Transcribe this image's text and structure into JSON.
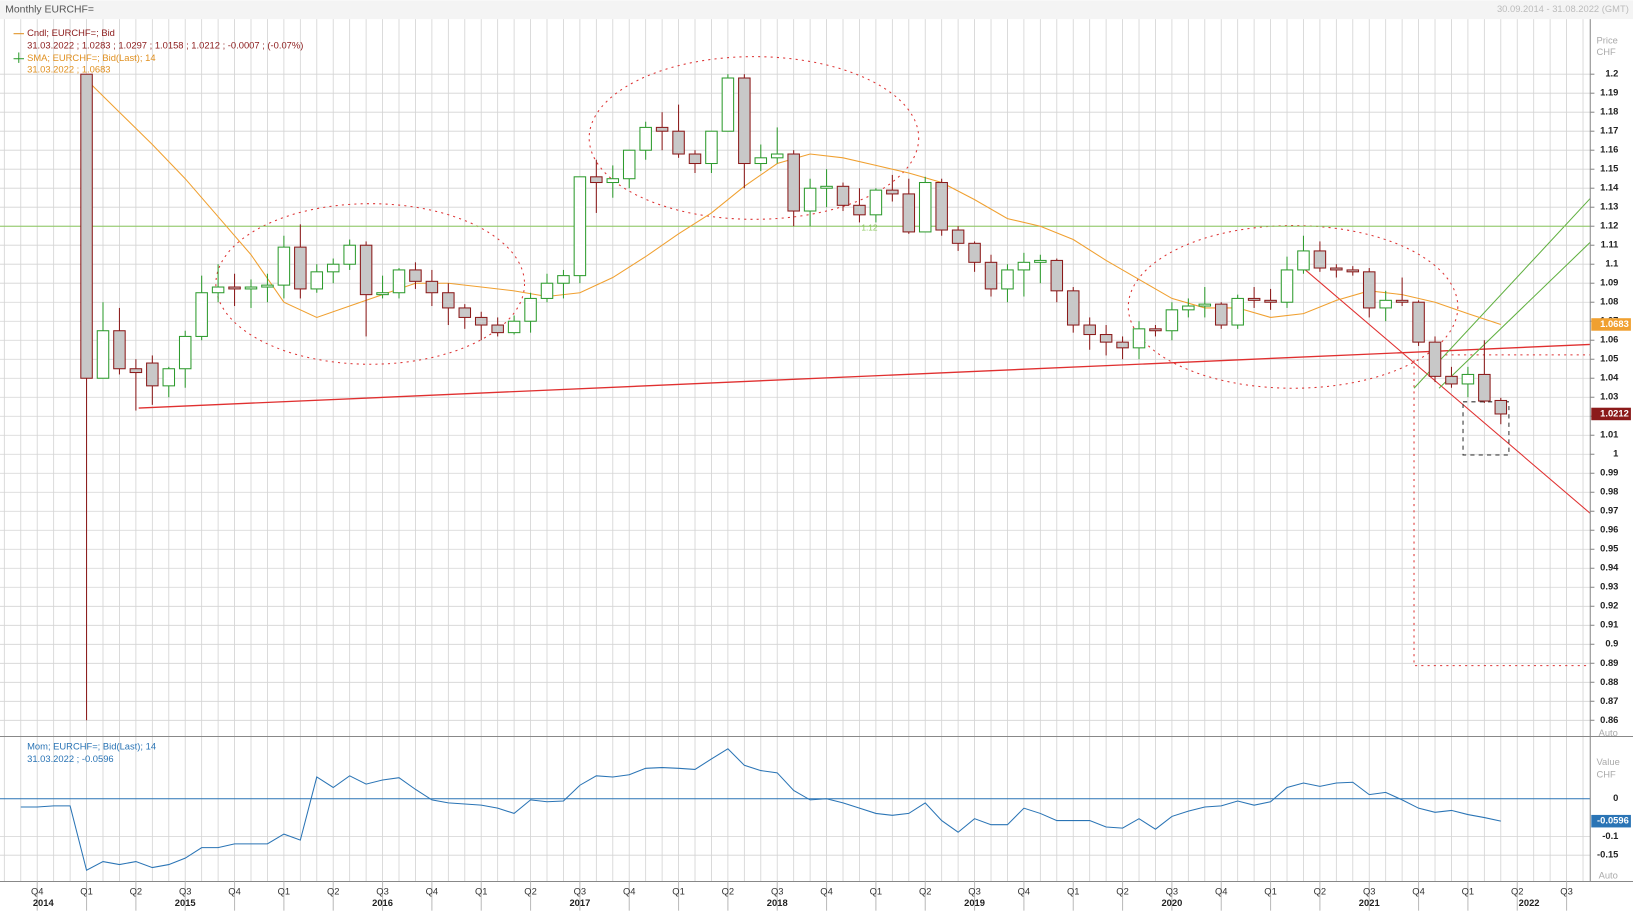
{
  "chart_data": {
    "type": "candlestick",
    "title": "Monthly EURCHF=",
    "date_range": "30.09.2014 - 31.08.2022 (GMT)",
    "legend": [
      "Cndl; EURCHF=; Bid",
      "31.03.2022 ; 1.0283 ; 1.0297 ; 1.0158 ; 1.0212 ; -0.0007 ; (-0.07%)",
      "SMA; EURCHF=; Bid(Last); 14",
      "31.03.2022 ; 1.0683"
    ],
    "y_axis_label": [
      "Price",
      "CHF"
    ],
    "y_auto": "Auto",
    "ylim": [
      0.852,
      1.229
    ],
    "yticks": [
      0.86,
      0.87,
      0.88,
      0.89,
      0.9,
      0.91,
      0.92,
      0.93,
      0.94,
      0.95,
      0.96,
      0.97,
      0.98,
      0.99,
      1,
      1.01,
      1.02,
      1.03,
      1.04,
      1.05,
      1.06,
      1.07,
      1.08,
      1.09,
      1.1,
      1.11,
      1.12,
      1.13,
      1.14,
      1.15,
      1.16,
      1.17,
      1.18,
      1.19,
      1.2
    ],
    "quarters": [
      "Q4",
      "Q1",
      "Q2",
      "Q3",
      "Q4",
      "Q1",
      "Q2",
      "Q3",
      "Q4",
      "Q1",
      "Q2",
      "Q3",
      "Q4",
      "Q1",
      "Q2",
      "Q3",
      "Q4",
      "Q1",
      "Q2",
      "Q3",
      "Q4",
      "Q1",
      "Q2",
      "Q3",
      "Q4",
      "Q1",
      "Q2",
      "Q3",
      "Q4",
      "Q1",
      "Q2",
      "Q3"
    ],
    "years": [
      "2014",
      "2015",
      "2016",
      "2017",
      "2018",
      "2019",
      "2020",
      "2021",
      "2022"
    ],
    "up_color": "#2e9b2e",
    "down_color": "#8b1a1a",
    "down_fill": "#c8c8c8",
    "candles": [
      [
        1.2,
        1.2,
        0.86,
        1.04
      ],
      [
        1.04,
        1.08,
        1.04,
        1.065
      ],
      [
        1.065,
        1.077,
        1.042,
        1.045
      ],
      [
        1.045,
        1.05,
        1.023,
        1.043
      ],
      [
        1.048,
        1.052,
        1.026,
        1.036
      ],
      [
        1.036,
        1.046,
        1.03,
        1.045
      ],
      [
        1.045,
        1.065,
        1.035,
        1.062
      ],
      [
        1.062,
        1.094,
        1.06,
        1.085
      ],
      [
        1.085,
        1.1,
        1.08,
        1.088
      ],
      [
        1.088,
        1.095,
        1.078,
        1.087
      ],
      [
        1.087,
        1.092,
        1.077,
        1.088
      ],
      [
        1.088,
        1.095,
        1.08,
        1.089
      ],
      [
        1.089,
        1.115,
        1.082,
        1.109
      ],
      [
        1.109,
        1.121,
        1.082,
        1.087
      ],
      [
        1.087,
        1.1,
        1.085,
        1.096
      ],
      [
        1.096,
        1.103,
        1.09,
        1.1
      ],
      [
        1.1,
        1.113,
        1.097,
        1.11
      ],
      [
        1.11,
        1.112,
        1.062,
        1.084
      ],
      [
        1.084,
        1.094,
        1.082,
        1.085
      ],
      [
        1.085,
        1.098,
        1.082,
        1.097
      ],
      [
        1.097,
        1.101,
        1.087,
        1.091
      ],
      [
        1.091,
        1.097,
        1.078,
        1.085
      ],
      [
        1.085,
        1.09,
        1.068,
        1.077
      ],
      [
        1.077,
        1.079,
        1.066,
        1.072
      ],
      [
        1.072,
        1.075,
        1.06,
        1.068
      ],
      [
        1.068,
        1.072,
        1.062,
        1.064
      ],
      [
        1.064,
        1.073,
        1.063,
        1.07
      ],
      [
        1.07,
        1.085,
        1.064,
        1.082
      ],
      [
        1.082,
        1.095,
        1.08,
        1.09
      ],
      [
        1.09,
        1.097,
        1.082,
        1.094
      ],
      [
        1.094,
        1.146,
        1.09,
        1.146
      ],
      [
        1.146,
        1.155,
        1.127,
        1.143
      ],
      [
        1.143,
        1.152,
        1.135,
        1.145
      ],
      [
        1.145,
        1.16,
        1.14,
        1.16
      ],
      [
        1.16,
        1.175,
        1.155,
        1.172
      ],
      [
        1.172,
        1.18,
        1.16,
        1.17
      ],
      [
        1.17,
        1.184,
        1.156,
        1.158
      ],
      [
        1.158,
        1.16,
        1.148,
        1.153
      ],
      [
        1.153,
        1.17,
        1.148,
        1.17
      ],
      [
        1.17,
        1.2,
        1.17,
        1.198
      ],
      [
        1.198,
        1.2,
        1.14,
        1.153
      ],
      [
        1.153,
        1.163,
        1.149,
        1.156
      ],
      [
        1.156,
        1.172,
        1.153,
        1.158
      ],
      [
        1.158,
        1.16,
        1.12,
        1.128
      ],
      [
        1.128,
        1.145,
        1.12,
        1.14
      ],
      [
        1.14,
        1.15,
        1.13,
        1.141
      ],
      [
        1.141,
        1.143,
        1.128,
        1.131
      ],
      [
        1.131,
        1.14,
        1.122,
        1.126
      ],
      [
        1.126,
        1.14,
        1.122,
        1.139
      ],
      [
        1.139,
        1.147,
        1.133,
        1.137
      ],
      [
        1.137,
        1.145,
        1.116,
        1.117
      ],
      [
        1.117,
        1.146,
        1.117,
        1.143
      ],
      [
        1.143,
        1.145,
        1.115,
        1.118
      ],
      [
        1.118,
        1.12,
        1.107,
        1.111
      ],
      [
        1.111,
        1.112,
        1.096,
        1.101
      ],
      [
        1.101,
        1.105,
        1.083,
        1.087
      ],
      [
        1.087,
        1.1,
        1.08,
        1.097
      ],
      [
        1.097,
        1.106,
        1.083,
        1.101
      ],
      [
        1.101,
        1.105,
        1.09,
        1.102
      ],
      [
        1.102,
        1.103,
        1.08,
        1.086
      ],
      [
        1.086,
        1.088,
        1.064,
        1.068
      ],
      [
        1.068,
        1.072,
        1.055,
        1.063
      ],
      [
        1.063,
        1.068,
        1.052,
        1.059
      ],
      [
        1.059,
        1.062,
        1.05,
        1.056
      ],
      [
        1.056,
        1.07,
        1.05,
        1.066
      ],
      [
        1.066,
        1.068,
        1.062,
        1.065
      ],
      [
        1.065,
        1.08,
        1.06,
        1.076
      ],
      [
        1.076,
        1.082,
        1.072,
        1.078
      ],
      [
        1.078,
        1.088,
        1.072,
        1.079
      ],
      [
        1.079,
        1.08,
        1.066,
        1.068
      ],
      [
        1.068,
        1.084,
        1.066,
        1.082
      ],
      [
        1.082,
        1.088,
        1.077,
        1.081
      ],
      [
        1.081,
        1.087,
        1.076,
        1.08
      ],
      [
        1.08,
        1.104,
        1.077,
        1.097
      ],
      [
        1.097,
        1.115,
        1.095,
        1.107
      ],
      [
        1.107,
        1.112,
        1.096,
        1.098
      ],
      [
        1.098,
        1.1,
        1.093,
        1.097
      ],
      [
        1.097,
        1.099,
        1.094,
        1.096
      ],
      [
        1.096,
        1.098,
        1.072,
        1.077
      ],
      [
        1.077,
        1.086,
        1.07,
        1.081
      ],
      [
        1.081,
        1.093,
        1.078,
        1.08
      ],
      [
        1.08,
        1.081,
        1.057,
        1.059
      ],
      [
        1.059,
        1.062,
        1.038,
        1.041
      ],
      [
        1.041,
        1.046,
        1.035,
        1.037
      ],
      [
        1.037,
        1.046,
        1.03,
        1.042
      ],
      [
        1.042,
        1.06,
        1.027,
        1.028
      ],
      [
        1.0283,
        1.0297,
        1.0158,
        1.0212
      ]
    ],
    "sma_color": "#f0a030",
    "sma": [
      1.197,
      1.18,
      1.163,
      1.145,
      1.125,
      1.105,
      1.08,
      1.072,
      1.078,
      1.084,
      1.09,
      1.09,
      1.088,
      1.086,
      1.083,
      1.085,
      1.093,
      1.104,
      1.116,
      1.127,
      1.141,
      1.153,
      1.158,
      1.156,
      1.152,
      1.148,
      1.143,
      1.134,
      1.124,
      1.12,
      1.113,
      1.102,
      1.092,
      1.082,
      1.077,
      1.077,
      1.072,
      1.074,
      1.081,
      1.086,
      1.084,
      1.08,
      1.074,
      1.0683
    ],
    "hline": {
      "value": 1.12,
      "label": "1.12",
      "color": "#8cc860"
    },
    "momentum": {
      "legend": [
        "Mom; EURCHF=; Bid(Last); 14",
        "31.03.2022 ; -0.0596"
      ],
      "y_axis_label": [
        "Value",
        "CHF"
      ],
      "y_auto": "Auto",
      "color": "#2a74b5",
      "ylim": [
        -0.22,
        0.16
      ],
      "yticks": [
        0,
        -0.1,
        -0.15
      ],
      "values": [
        -0.022,
        -0.022,
        -0.019,
        -0.019,
        -0.19,
        -0.167,
        -0.175,
        -0.167,
        -0.183,
        -0.175,
        -0.158,
        -0.13,
        -0.13,
        -0.12,
        -0.12,
        -0.12,
        -0.094,
        -0.11,
        0.058,
        0.03,
        0.061,
        0.039,
        0.05,
        0.056,
        0.025,
        -0.003,
        -0.011,
        -0.014,
        -0.017,
        -0.025,
        -0.039,
        -0.003,
        -0.008,
        -0.006,
        0.036,
        0.061,
        0.058,
        0.064,
        0.081,
        0.083,
        0.081,
        0.078,
        0.106,
        0.133,
        0.089,
        0.075,
        0.069,
        0.022,
        -0.003,
        0,
        -0.011,
        -0.025,
        -0.039,
        -0.044,
        -0.039,
        -0.011,
        -0.058,
        -0.089,
        -0.053,
        -0.069,
        -0.069,
        -0.025,
        -0.039,
        -0.058,
        -0.058,
        -0.058,
        -0.075,
        -0.078,
        -0.053,
        -0.081,
        -0.047,
        -0.033,
        -0.022,
        -0.019,
        -0.006,
        -0.017,
        -0.008,
        0.03,
        0.042,
        0.033,
        0.042,
        0.044,
        0.011,
        0.017,
        -0.003,
        -0.025,
        -0.036,
        -0.031,
        -0.042,
        -0.05,
        -0.0596
      ]
    }
  }
}
